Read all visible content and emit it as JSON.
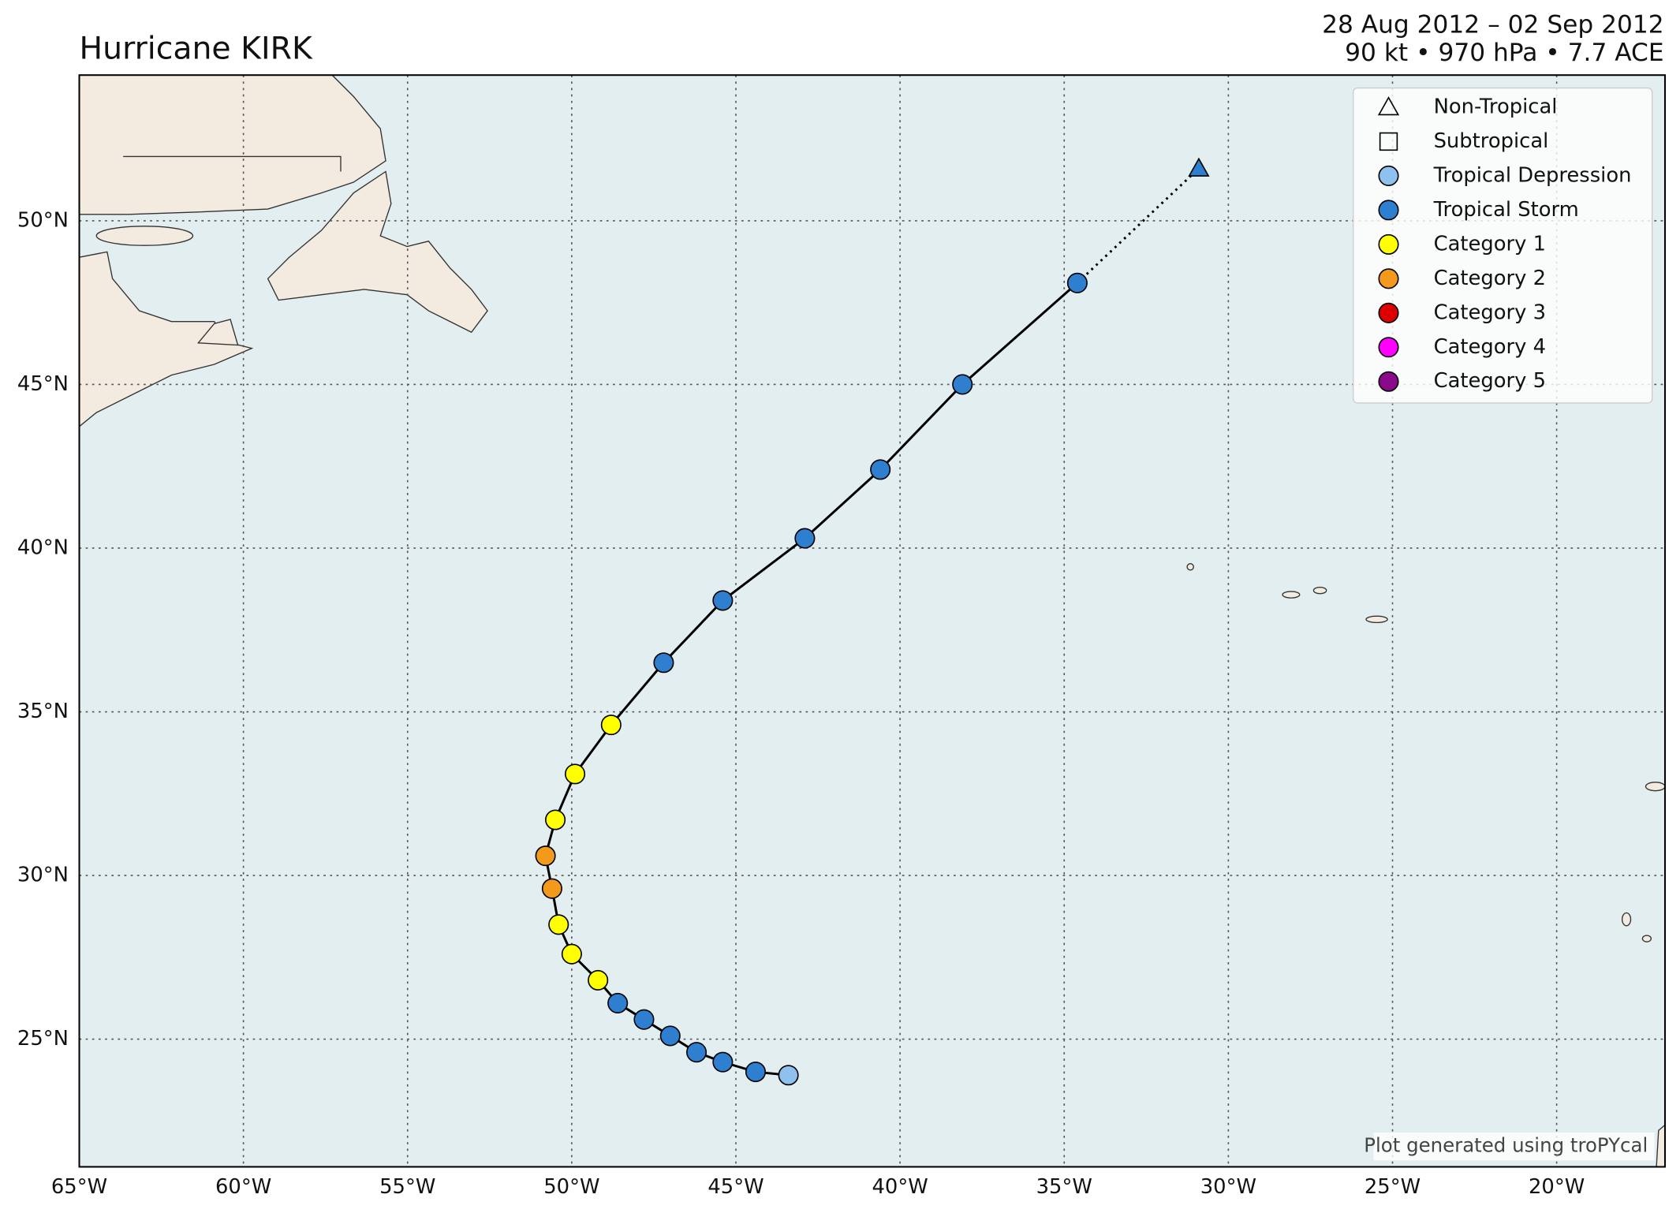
{
  "chart_data": {
    "type": "track",
    "title": "Hurricane KIRK",
    "subtitle": [
      "28 Aug 2012 – 02 Sep 2012",
      "90 kt • 970 hPa • 7.7 ACE"
    ],
    "footnote": "Plot generated using troPYcal",
    "x": [
      -43.4,
      -44.4,
      -45.4,
      -46.2,
      -47.0,
      -47.8,
      -48.6,
      -49.2,
      -50.0,
      -50.4,
      -50.6,
      -50.8,
      -50.5,
      -49.9,
      -48.8,
      -47.2,
      -45.4,
      -42.9,
      -40.6,
      -38.1,
      -34.6,
      -30.9
    ],
    "values": [
      23.9,
      24.0,
      24.3,
      24.6,
      25.1,
      25.6,
      26.1,
      26.8,
      27.6,
      28.5,
      29.6,
      30.6,
      31.7,
      33.1,
      34.6,
      36.5,
      38.4,
      40.3,
      42.4,
      45.0,
      48.1,
      51.6
    ],
    "colors": [
      "#8fc1ee",
      "#2f7fd0",
      "#2f7fd0",
      "#2f7fd0",
      "#2f7fd0",
      "#2f7fd0",
      "#2f7fd0",
      "#ffff00",
      "#ffff00",
      "#ffff00",
      "#f39a1c",
      "#f39a1c",
      "#ffff00",
      "#ffff00",
      "#ffff00",
      "#2f7fd0",
      "#2f7fd0",
      "#2f7fd0",
      "#2f7fd0",
      "#2f7fd0",
      "#2f7fd0",
      "#2f7fd0"
    ],
    "markers": [
      "circle",
      "circle",
      "circle",
      "circle",
      "circle",
      "circle",
      "circle",
      "circle",
      "circle",
      "circle",
      "circle",
      "circle",
      "circle",
      "circle",
      "circle",
      "circle",
      "circle",
      "circle",
      "circle",
      "circle",
      "circle",
      "triangle"
    ],
    "legend": [
      {
        "name": "Non-Tropical",
        "marker": "triangle",
        "color": "none"
      },
      {
        "name": "Subtropical",
        "marker": "square",
        "color": "none"
      },
      {
        "name": "Tropical Depression",
        "marker": "circle",
        "color": "#8fc1ee"
      },
      {
        "name": "Tropical Storm",
        "marker": "circle",
        "color": "#2f7fd0"
      },
      {
        "name": "Category 1",
        "marker": "circle",
        "color": "#ffff00"
      },
      {
        "name": "Category 2",
        "marker": "circle",
        "color": "#f39a1c"
      },
      {
        "name": "Category 3",
        "marker": "circle",
        "color": "#dd0000"
      },
      {
        "name": "Category 4",
        "marker": "circle",
        "color": "#ff00ff"
      },
      {
        "name": "Category 5",
        "marker": "circle",
        "color": "#8b0a8b"
      }
    ],
    "xlim": [
      -65,
      -16.7
    ],
    "ylim": [
      21.1,
      54.45
    ],
    "xticks": [
      {
        "value": -65,
        "label": "65°W"
      },
      {
        "value": -60,
        "label": "60°W"
      },
      {
        "value": -55,
        "label": "55°W"
      },
      {
        "value": -50,
        "label": "50°W"
      },
      {
        "value": -45,
        "label": "45°W"
      },
      {
        "value": -40,
        "label": "40°W"
      },
      {
        "value": -35,
        "label": "35°W"
      },
      {
        "value": -30,
        "label": "30°W"
      },
      {
        "value": -25,
        "label": "25°W"
      },
      {
        "value": -20,
        "label": "20°W"
      }
    ],
    "yticks": [
      {
        "value": 25,
        "label": "25°N"
      },
      {
        "value": 30,
        "label": "30°N"
      },
      {
        "value": 35,
        "label": "35°N"
      },
      {
        "value": 40,
        "label": "40°N"
      },
      {
        "value": 45,
        "label": "45°N"
      },
      {
        "value": 50,
        "label": "50°N"
      }
    ],
    "grid": true
  }
}
